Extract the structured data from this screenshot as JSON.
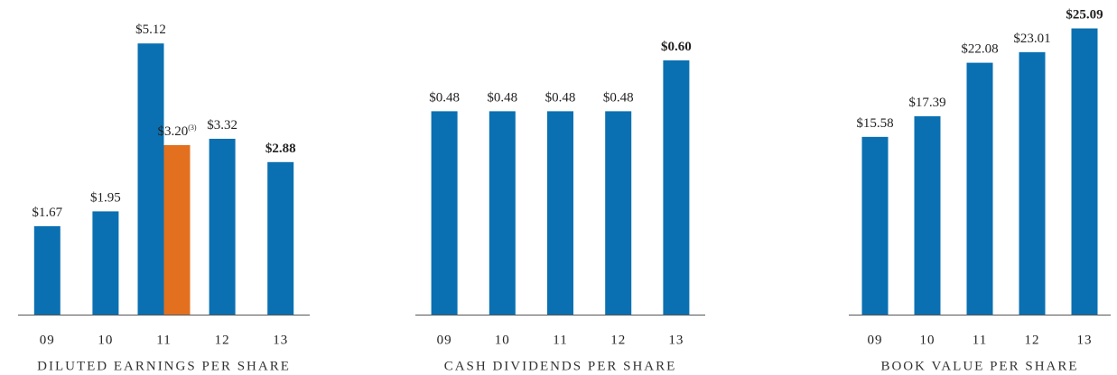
{
  "chart_data": [
    {
      "type": "bar",
      "title": "DILUTED EARNINGS PER SHARE",
      "categories": [
        "09",
        "10",
        "11",
        "12",
        "13"
      ],
      "series": [
        {
          "color": "#0a70b1",
          "values": [
            1.67,
            1.95,
            5.12,
            3.32,
            2.88
          ],
          "value_labels": [
            "$1.67",
            "$1.95",
            "$5.12",
            "$3.32",
            "$2.88"
          ]
        },
        {
          "color": "#e2701f",
          "values": [
            null,
            null,
            3.2,
            null,
            null
          ],
          "value_labels": [
            null,
            null,
            "$3.20",
            null,
            null
          ],
          "value_label_notes": [
            null,
            null,
            "(3)",
            null,
            null
          ]
        }
      ],
      "ylim": [
        0,
        5.6
      ]
    },
    {
      "type": "bar",
      "title": "CASH DIVIDENDS PER SHARE",
      "categories": [
        "09",
        "10",
        "11",
        "12",
        "13"
      ],
      "series": [
        {
          "color": "#0a70b1",
          "values": [
            0.48,
            0.48,
            0.48,
            0.48,
            0.6
          ],
          "value_labels": [
            "$0.48",
            "$0.48",
            "$0.48",
            "$0.48",
            "$0.60"
          ]
        }
      ],
      "ylim": [
        0,
        0.7
      ]
    },
    {
      "type": "bar",
      "title": "BOOK VALUE PER SHARE",
      "categories": [
        "09",
        "10",
        "11",
        "12",
        "13"
      ],
      "series": [
        {
          "color": "#0a70b1",
          "values": [
            15.58,
            17.39,
            22.08,
            23.01,
            25.09
          ],
          "value_labels": [
            "$15.58",
            "$17.39",
            "$22.08",
            "$23.01",
            "$25.09"
          ]
        }
      ],
      "ylim": [
        0,
        26
      ]
    }
  ]
}
